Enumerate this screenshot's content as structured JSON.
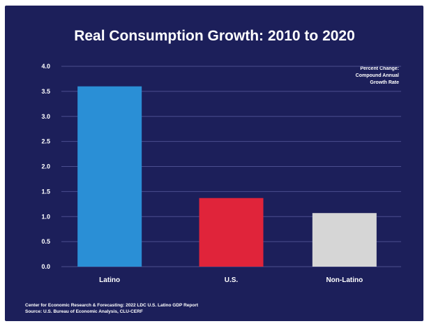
{
  "chart_data": {
    "type": "bar",
    "title": "Real Consumption Growth: 2010 to 2020",
    "annotation": [
      "Percent Change:",
      "Compound Annual",
      "Growth Rate"
    ],
    "categories": [
      "Latino",
      "U.S.",
      "Non-Latino"
    ],
    "values": [
      3.6,
      1.37,
      1.07
    ],
    "colors": [
      "#2a8fd6",
      "#e0243a",
      "#d6d6d6"
    ],
    "ylim": [
      0,
      4
    ],
    "yticks": [
      "0.0",
      "0.5",
      "1.0",
      "1.5",
      "2.0",
      "2.5",
      "3.0",
      "3.5",
      "4.0"
    ],
    "grid": true,
    "xlabel": "",
    "ylabel": ""
  },
  "source": [
    "Center for Economic Research & Forecasting: 2022 LDC U.S. Latino GDP Report",
    "Source: U.S. Bureau of Economic Analysis, CLU-CERF"
  ],
  "colors": {
    "background": "#1c1f5a",
    "grid": "#4b4f8f"
  }
}
